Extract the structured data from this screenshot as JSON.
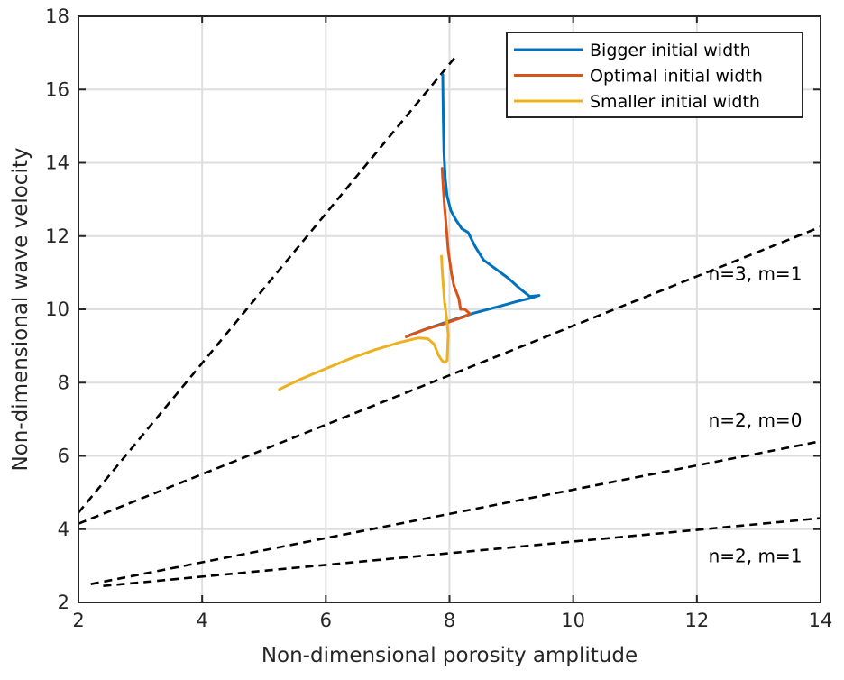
{
  "chart_data": {
    "type": "line",
    "xlabel": "Non-dimensional porosity amplitude",
    "ylabel": "Non-dimensional wave velocity",
    "xlim": [
      2,
      14
    ],
    "ylim": [
      2,
      18
    ],
    "xticks": [
      2,
      4,
      6,
      8,
      10,
      12,
      14
    ],
    "yticks": [
      2,
      4,
      6,
      8,
      10,
      12,
      14,
      16,
      18
    ],
    "grid": true,
    "legend_position": "top-right",
    "series": [
      {
        "name": "Bigger initial width",
        "color": "#0072BD",
        "x": [
          7.33,
          7.6,
          8.0,
          8.4,
          8.8,
          9.1,
          9.3,
          9.45,
          9.3,
          9.15,
          8.95,
          8.75,
          8.55,
          8.42,
          8.3,
          8.2,
          8.1,
          8.02,
          7.96,
          7.93,
          7.91,
          7.9,
          7.89
        ],
        "y": [
          9.28,
          9.45,
          9.68,
          9.9,
          10.08,
          10.22,
          10.3,
          10.38,
          10.35,
          10.55,
          10.85,
          11.1,
          11.35,
          11.7,
          12.1,
          12.2,
          12.45,
          12.7,
          13.1,
          13.6,
          14.3,
          15.2,
          16.4
        ]
      },
      {
        "name": "Optimal initial width",
        "color": "#D95319",
        "x": [
          7.3,
          7.6,
          7.9,
          8.1,
          8.25,
          8.33,
          8.25,
          8.18,
          8.15,
          8.07,
          8.03,
          7.98,
          7.95,
          7.92,
          7.9,
          7.88
        ],
        "y": [
          9.25,
          9.45,
          9.6,
          9.72,
          9.8,
          9.88,
          10.0,
          10.0,
          10.3,
          10.65,
          11.0,
          11.6,
          12.2,
          12.8,
          13.3,
          13.85
        ]
      },
      {
        "name": "Smaller initial width",
        "color": "#EDB120",
        "x": [
          5.25,
          5.6,
          6.0,
          6.4,
          6.8,
          7.2,
          7.5,
          7.65,
          7.75,
          7.82,
          7.88,
          7.92,
          7.96,
          7.98,
          7.95,
          7.92,
          7.9,
          7.88,
          7.87
        ],
        "y": [
          7.82,
          8.1,
          8.38,
          8.66,
          8.9,
          9.1,
          9.22,
          9.2,
          9.05,
          8.75,
          8.6,
          8.55,
          8.6,
          9.3,
          9.8,
          10.2,
          10.65,
          11.1,
          11.45
        ]
      }
    ],
    "reference_lines": [
      {
        "x": [
          2,
          8.1
        ],
        "y": [
          4.45,
          16.9
        ]
      },
      {
        "x": [
          2,
          14
        ],
        "y": [
          4.15,
          12.25
        ]
      },
      {
        "x": [
          2.2,
          14
        ],
        "y": [
          2.5,
          6.4
        ]
      },
      {
        "x": [
          2.4,
          14
        ],
        "y": [
          2.45,
          4.3
        ]
      }
    ],
    "annotations": [
      {
        "text": "n=3, m=1",
        "x": 13.7,
        "y": 10.8
      },
      {
        "text": "n=2, m=0",
        "x": 13.7,
        "y": 6.8
      },
      {
        "text": "n=2, m=1",
        "x": 13.7,
        "y": 3.1
      }
    ]
  }
}
